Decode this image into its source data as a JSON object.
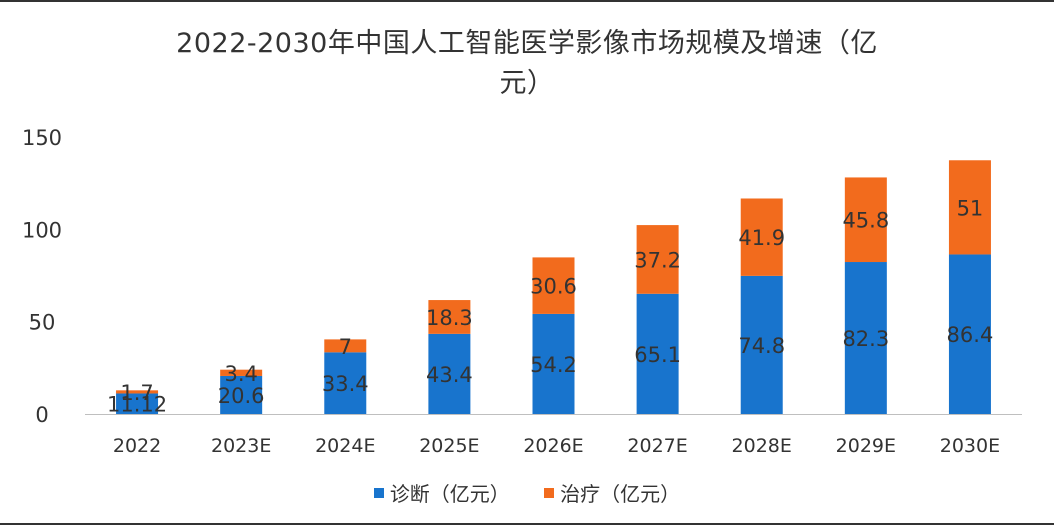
{
  "chart_data": {
    "type": "bar",
    "stacked": true,
    "title_line1": "2022-2030年中国人工智能医学影像市场规模及增速（亿",
    "title_line2": "元）",
    "categories": [
      "2022",
      "2023E",
      "2024E",
      "2025E",
      "2026E",
      "2027E",
      "2028E",
      "2029E",
      "2030E"
    ],
    "series": [
      {
        "name": "诊断（亿元）",
        "color": "#1874CD",
        "values": [
          11.12,
          20.6,
          33.4,
          43.4,
          54.2,
          65.1,
          74.8,
          82.3,
          86.4
        ]
      },
      {
        "name": "治疗（亿元）",
        "color": "#F26B1D",
        "values": [
          1.7,
          3.4,
          7,
          18.3,
          30.6,
          37.2,
          41.9,
          45.8,
          51
        ]
      }
    ],
    "data_labels": [
      [
        "11.12",
        "20.6",
        "33.4",
        "43.4",
        "54.2",
        "65.1",
        "74.8",
        "82.3",
        "86.4"
      ],
      [
        "1.7",
        "3.4",
        "7",
        "18.3",
        "30.6",
        "37.2",
        "41.9",
        "45.8",
        "51"
      ]
    ],
    "ylim": [
      0,
      150
    ],
    "yticks": [
      "0",
      "50",
      "100",
      "150"
    ],
    "grid": false,
    "legend_position": "bottom"
  }
}
